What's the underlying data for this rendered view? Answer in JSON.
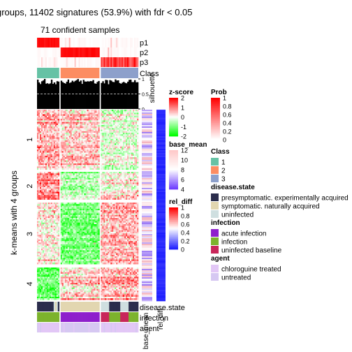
{
  "chart_data": {
    "type": "heatmap",
    "title": "groups, 11402 signatures (53.9%) with fdr < 0.05",
    "subtitle": "71 confident samples",
    "row_title": "k-means with 4 groups",
    "row_groups": [
      "1",
      "2",
      "3",
      "4"
    ],
    "row_group_weights": [
      88,
      42,
      92,
      48
    ],
    "column_groups": [
      {
        "class": "1",
        "samples": 16
      },
      {
        "class": "2",
        "samples": 28
      },
      {
        "class": "3",
        "samples": 27
      }
    ],
    "group_pattern": [
      [
        0.6,
        0.4,
        -0.2
      ],
      [
        0.9,
        -0.5,
        0.1
      ],
      [
        0.2,
        -1.0,
        0.6
      ],
      [
        -1.2,
        0.3,
        0.6
      ]
    ],
    "top_annotations": [
      "p1",
      "p2",
      "p3",
      "Class"
    ],
    "silhouette": {
      "label": "silhouette",
      "ticks": [
        "1",
        "0.5",
        "0"
      ],
      "threshold": 0.5
    },
    "bottom_annotations": [
      "disease.state",
      "infection",
      "agent"
    ],
    "row_annotation_labels": [
      "base_mean",
      "rel_diff"
    ],
    "legends": {
      "zscore": {
        "title": "z-score",
        "ticks": [
          "2",
          "1",
          "0",
          "-1",
          "-2"
        ]
      },
      "prob": {
        "title": "Prob",
        "ticks": [
          "1",
          "0.8",
          "0.6",
          "0.4",
          "0.2",
          "0"
        ]
      },
      "base_mean": {
        "title": "base_mean",
        "ticks": [
          "12",
          "10",
          "8",
          "6",
          "4"
        ]
      },
      "rel_diff": {
        "title": "rel_diff",
        "ticks": [
          "1",
          "0.8",
          "0.6",
          "0.4",
          "0.2",
          "0"
        ]
      },
      "class": {
        "title": "Class",
        "items": [
          {
            "label": "1",
            "color": "#66c2a5"
          },
          {
            "label": "2",
            "color": "#fc8d62"
          },
          {
            "label": "3",
            "color": "#8da0cb"
          }
        ]
      },
      "disease_state": {
        "title": "disease.state",
        "items": [
          {
            "label": "presymptomatic. experimentally acquired",
            "color": "#2b2d4c"
          },
          {
            "label": "symptomatic. naturally acquired",
            "color": "#e2d6b0"
          },
          {
            "label": "uninfected",
            "color": "#cfdfe0"
          }
        ]
      },
      "infection": {
        "title": "infection",
        "items": [
          {
            "label": "acute infection",
            "color": "#8e1fcc"
          },
          {
            "label": "infection",
            "color": "#7cb32d"
          },
          {
            "label": "uninfected baseline",
            "color": "#c8265a"
          }
        ]
      },
      "agent": {
        "title": "agent",
        "items": [
          {
            "label": "chloroguine treated",
            "color": "#e2c7f6"
          },
          {
            "label": "untreated",
            "color": "#d6c8f2"
          }
        ]
      }
    }
  }
}
